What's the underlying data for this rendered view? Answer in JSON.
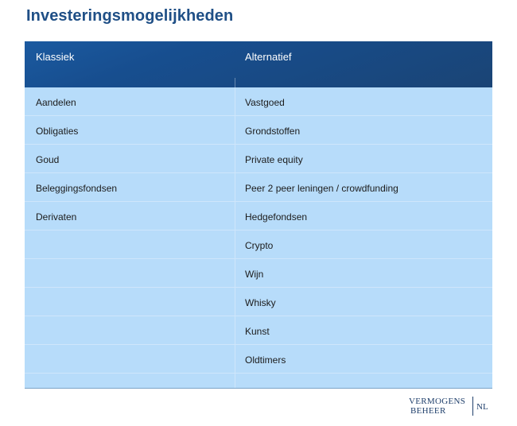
{
  "page": {
    "title": "Investeringsmogelijkheden"
  },
  "table": {
    "headers": {
      "col1": "Klassiek",
      "col2": "Alternatief"
    },
    "rows": [
      {
        "col1": "Aandelen",
        "col2": "Vastgoed"
      },
      {
        "col1": "Obligaties",
        "col2": "Grondstoffen"
      },
      {
        "col1": "Goud",
        "col2": "Private equity"
      },
      {
        "col1": "Beleggingsfondsen",
        "col2": "Peer 2 peer leningen / crowdfunding"
      },
      {
        "col1": "Derivaten",
        "col2": "Hedgefondsen"
      },
      {
        "col1": "",
        "col2": "Crypto"
      },
      {
        "col1": "",
        "col2": "Wijn"
      },
      {
        "col1": "",
        "col2": "Whisky"
      },
      {
        "col1": "",
        "col2": "Kunst"
      },
      {
        "col1": "",
        "col2": "Oldtimers"
      }
    ]
  },
  "logo": {
    "line1": "VERMOGENS",
    "line2": "BEHEER",
    "suffix": "NL"
  },
  "colors": {
    "title": "#1f4f86",
    "header_bg": "#1a4c8a",
    "row_bg": "#b7dcfa"
  }
}
